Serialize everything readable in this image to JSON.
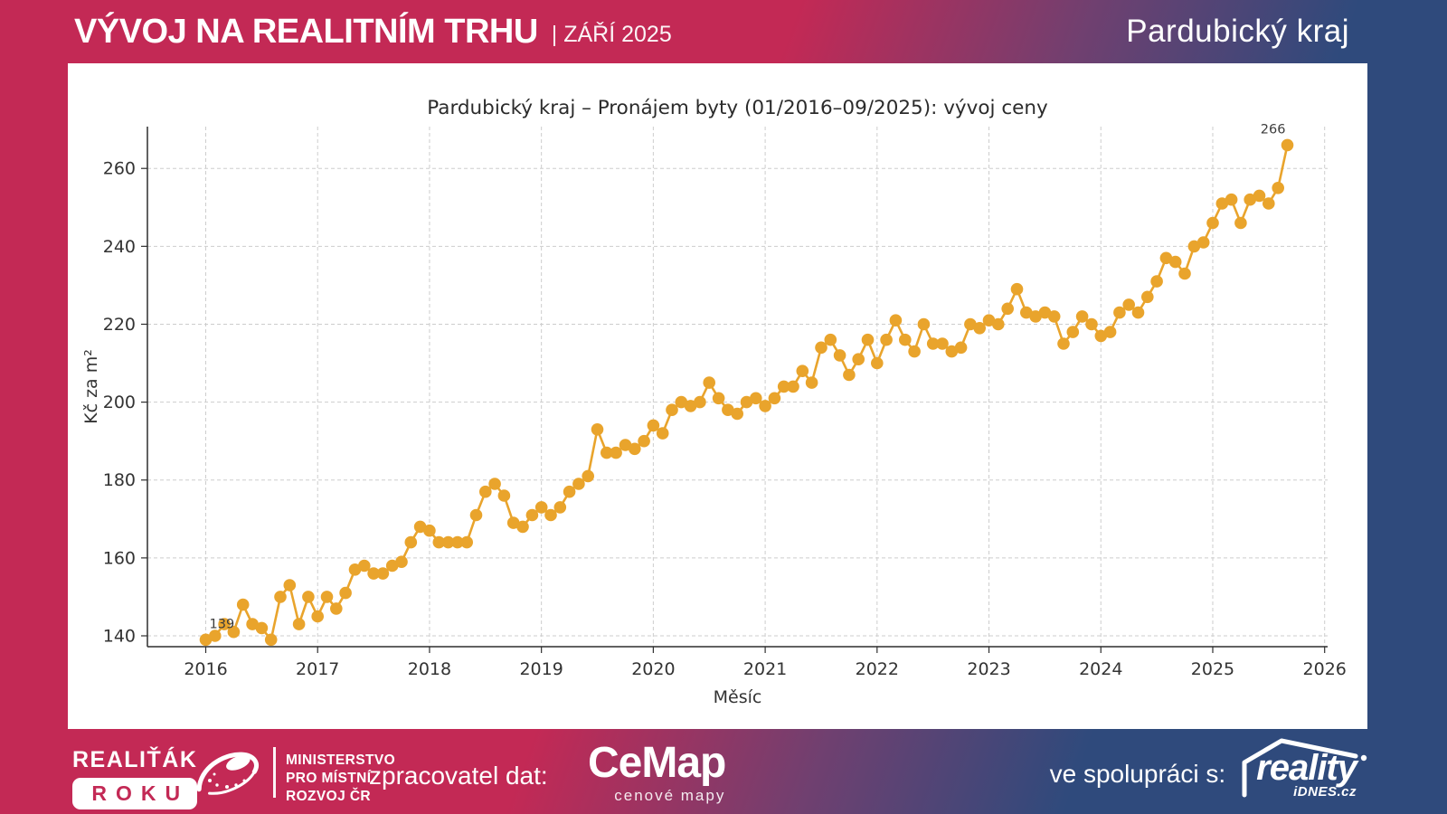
{
  "header": {
    "title": "VÝVOJ NA REALITNÍM TRHU",
    "date_label": "| ZÁŘÍ 2025",
    "region": "Pardubický kraj"
  },
  "chart_data": {
    "type": "line",
    "title": "Pardubický kraj – Pronájem byty (01/2016–09/2025): vývoj ceny",
    "xlabel": "Měsíc",
    "ylabel": "Kč za m²",
    "x_start_month": "2016-01",
    "x_end_month": "2025-09",
    "x_tick_labels": [
      "2016",
      "2017",
      "2018",
      "2019",
      "2020",
      "2021",
      "2022",
      "2023",
      "2024",
      "2025",
      "2026"
    ],
    "y_ticks": [
      140,
      160,
      180,
      200,
      220,
      240,
      260
    ],
    "ylim": [
      136.5,
      271
    ],
    "grid": true,
    "legend": false,
    "line_color": "#E9A42C",
    "series": [
      {
        "values": [
          139,
          140,
          143,
          141,
          148,
          143,
          142,
          139,
          150,
          153,
          143,
          150,
          145,
          150,
          147,
          151,
          157,
          158,
          156,
          156,
          158,
          159,
          164,
          168,
          167,
          164,
          164,
          164,
          164,
          171,
          177,
          179,
          176,
          169,
          168,
          171,
          173,
          171,
          173,
          177,
          179,
          181,
          193,
          187,
          187,
          189,
          188,
          190,
          194,
          192,
          198,
          200,
          199,
          200,
          205,
          201,
          198,
          197,
          200,
          201,
          199,
          201,
          204,
          204,
          208,
          205,
          214,
          216,
          212,
          207,
          211,
          216,
          210,
          216,
          221,
          216,
          213,
          220,
          215,
          215,
          213,
          214,
          220,
          219,
          221,
          220,
          224,
          229,
          223,
          222,
          223,
          222,
          215,
          218,
          222,
          220,
          217,
          218,
          223,
          225,
          223,
          227,
          231,
          237,
          236,
          233,
          240,
          241,
          246,
          251,
          252,
          246,
          252,
          253,
          251,
          255,
          266
        ]
      }
    ],
    "annotations": [
      {
        "text": "139",
        "month_index": 0
      },
      {
        "text": "266",
        "month_index": 116
      }
    ]
  },
  "footer": {
    "realitak": {
      "line1": "REALIŤÁK",
      "line2": "ROKU"
    },
    "ministry": {
      "line1": "MINISTERSTVO",
      "line2": "PRO MÍSTNÍ",
      "line3": "ROZVOJ ČR"
    },
    "data_provider_label": "zpracovatel dat:",
    "cemap": {
      "name": "CeMap",
      "tagline": "cenové mapy"
    },
    "partner_label": "ve spolupráci s:",
    "reality": {
      "name": "reality",
      "sub": "iDNES.cz"
    }
  }
}
